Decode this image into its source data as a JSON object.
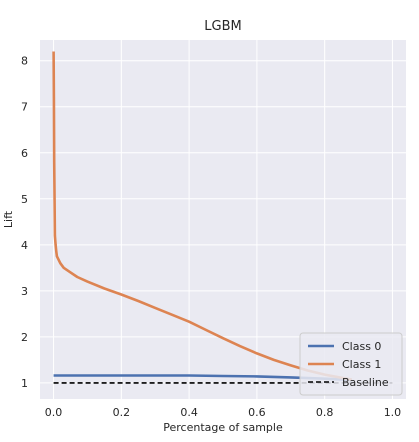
{
  "chart_data": {
    "type": "line",
    "title": "LGBM",
    "xlabel": "Percentage of sample",
    "ylabel": "Lift",
    "xlim": [
      -0.04,
      1.04
    ],
    "ylim": [
      0.65,
      8.45
    ],
    "grid": true,
    "legend_position": "lower-right",
    "x_ticks": [
      0.0,
      0.2,
      0.4,
      0.6,
      0.8,
      1.0
    ],
    "x_tick_labels": [
      "0.0",
      "0.2",
      "0.4",
      "0.6",
      "0.8",
      "1.0"
    ],
    "y_ticks": [
      1,
      2,
      3,
      4,
      5,
      6,
      7,
      8
    ],
    "y_tick_labels": [
      "1",
      "2",
      "3",
      "4",
      "5",
      "6",
      "7",
      "8"
    ],
    "series": [
      {
        "name": "Class 0",
        "color": "#4c72b0",
        "x": [
          0.0,
          0.1,
          0.2,
          0.3,
          0.4,
          0.5,
          0.6,
          0.7,
          0.8,
          0.88
        ],
        "y": [
          1.16,
          1.16,
          1.16,
          1.16,
          1.16,
          1.15,
          1.14,
          1.12,
          1.09,
          1.06
        ]
      },
      {
        "name": "Class 1",
        "color": "#dd8452",
        "x": [
          0.0,
          0.001,
          0.002,
          0.003,
          0.004,
          0.006,
          0.008,
          0.01,
          0.02,
          0.03,
          0.05,
          0.07,
          0.1,
          0.15,
          0.2,
          0.25,
          0.3,
          0.35,
          0.4,
          0.45,
          0.5,
          0.55,
          0.6,
          0.65,
          0.7,
          0.75,
          0.8,
          0.85,
          0.88
        ],
        "y": [
          8.2,
          7.2,
          5.8,
          4.9,
          4.2,
          4.0,
          3.85,
          3.75,
          3.6,
          3.5,
          3.4,
          3.3,
          3.2,
          3.05,
          2.92,
          2.78,
          2.63,
          2.48,
          2.33,
          2.15,
          1.97,
          1.8,
          1.64,
          1.5,
          1.38,
          1.27,
          1.18,
          1.11,
          1.07
        ]
      },
      {
        "name": "Baseline",
        "color": "#000000",
        "dashed": true,
        "x": [
          0.0,
          1.0
        ],
        "y": [
          1.0,
          1.0
        ]
      }
    ]
  }
}
